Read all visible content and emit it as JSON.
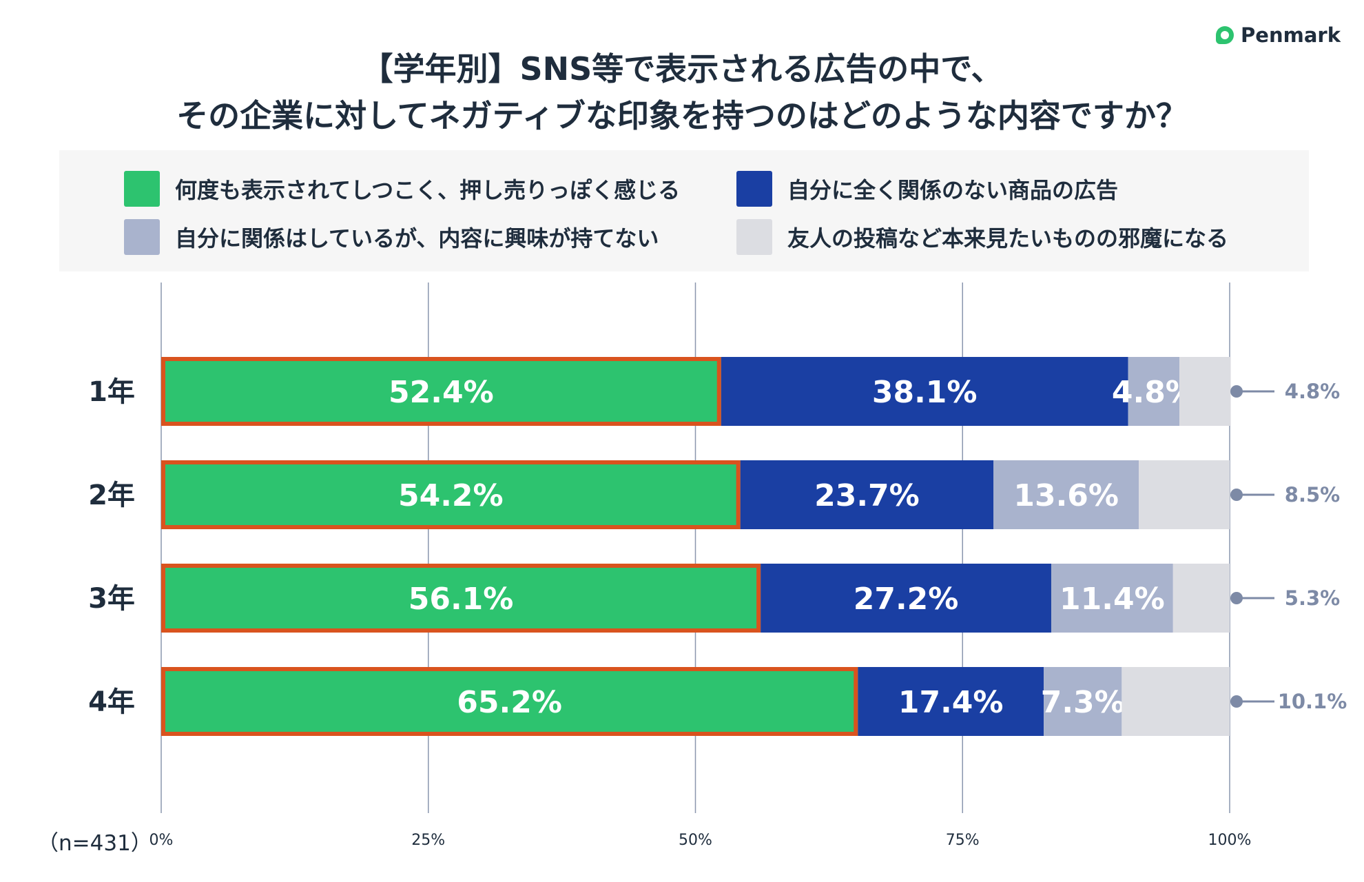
{
  "brand": {
    "name": "Penmark",
    "logo_color": "#2dc36f"
  },
  "title": {
    "line1": "【学年別】SNS等で表示される広告の中で、",
    "line2": "その企業に対してネガティブな印象を持つのはどのような内容ですか？"
  },
  "note": "（n=431）",
  "highlight_color": "#d9531e",
  "chart_data": {
    "type": "bar",
    "orientation": "horizontal",
    "stacked": true,
    "normalized": true,
    "categories": [
      "1年",
      "2年",
      "3年",
      "4年"
    ],
    "series": [
      {
        "name": "何度も表示されてしつこく、押し売りっぽく感じる",
        "color": "#2dc36f",
        "values": [
          52.4,
          54.2,
          56.1,
          65.2
        ],
        "labels": [
          "52.4%",
          "54.2%",
          "56.1%",
          "65.2%"
        ]
      },
      {
        "name": "自分に全く関係のない商品の広告",
        "color": "#1a3fa3",
        "values": [
          38.1,
          23.7,
          27.2,
          17.4
        ],
        "labels": [
          "38.1%",
          "23.7%",
          "27.2%",
          "17.4%"
        ]
      },
      {
        "name": "自分に関係はしているが、内容に興味が持てない",
        "color": "#a9b3cd",
        "values": [
          4.8,
          13.6,
          11.4,
          7.3
        ],
        "labels": [
          "4.8%",
          "13.6%",
          "11.4%",
          "7.3%"
        ]
      },
      {
        "name": "友人の投稿など本来見たいものの邪魔になる",
        "color": "#dcdde2",
        "values": [
          4.8,
          8.5,
          5.3,
          10.1
        ],
        "labels": [
          "4.8%",
          "8.5%",
          "5.3%",
          "10.1%"
        ]
      }
    ],
    "xlim": [
      0,
      100
    ],
    "xticks": [
      0,
      25,
      50,
      75,
      100
    ],
    "xtick_labels": [
      "0%",
      "25%",
      "50%",
      "75%",
      "100%"
    ],
    "grid": true,
    "legend_position": "top",
    "outside_label_color": "#7d8aa6",
    "highlight_series": 0
  }
}
